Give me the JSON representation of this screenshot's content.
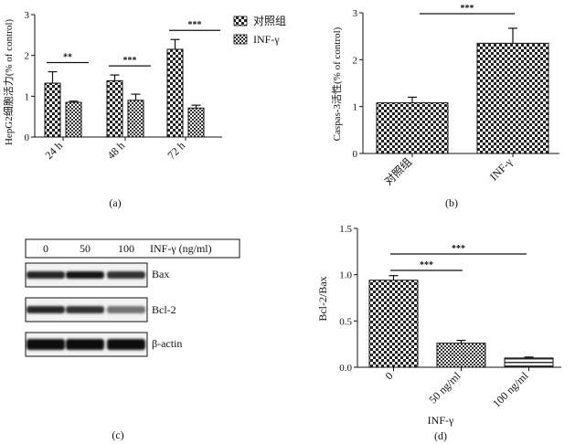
{
  "chart_data": [
    {
      "id": "a",
      "type": "bar",
      "panel_label": "(a)",
      "ylabel": "HepG2细胞活力(% of control)",
      "ylim": [
        0,
        3
      ],
      "yticks": [
        "0",
        "1",
        "2",
        "3"
      ],
      "categories": [
        "24 h",
        "48 h",
        "72 h"
      ],
      "series": [
        {
          "name": "对照组",
          "values": [
            1.32,
            1.38,
            2.15
          ],
          "errors": [
            0.28,
            0.14,
            0.24
          ],
          "pattern": "check-large"
        },
        {
          "name": "INF-γ",
          "values": [
            0.85,
            0.9,
            0.71
          ],
          "errors": [
            0.03,
            0.15,
            0.07
          ],
          "pattern": "check-small"
        }
      ],
      "legend_position": "top-right",
      "significance": [
        {
          "category": "24 h",
          "label": "**"
        },
        {
          "category": "48 h",
          "label": "***"
        },
        {
          "category": "72 h",
          "label": "***"
        }
      ]
    },
    {
      "id": "b",
      "type": "bar",
      "panel_label": "(b)",
      "ylabel": "Caspas-3活性(% of control)",
      "ylim": [
        0,
        3
      ],
      "yticks": [
        "0",
        "1",
        "2",
        "3"
      ],
      "categories": [
        "对照组",
        "INF-γ"
      ],
      "values": [
        1.08,
        2.35
      ],
      "errors": [
        0.12,
        0.32
      ],
      "pattern": "check-large",
      "significance": [
        {
          "from": 0,
          "to": 1,
          "label": "***"
        }
      ]
    },
    {
      "id": "c",
      "type": "western-blot",
      "panel_label": "(c)",
      "header_lanes": [
        "0",
        "50",
        "100"
      ],
      "header_unit": "INF-γ (ng/ml)",
      "rows": [
        {
          "name": "Bax",
          "intensity": [
            0.85,
            0.9,
            0.8
          ]
        },
        {
          "name": "Bcl-2",
          "intensity": [
            0.85,
            0.8,
            0.55
          ]
        },
        {
          "name": "β-actin",
          "intensity": [
            0.95,
            0.95,
            0.95
          ]
        }
      ]
    },
    {
      "id": "d",
      "type": "bar",
      "panel_label": "(d)",
      "ylabel": "Bcl-2/Bax",
      "xlabel": "INF-γ",
      "ylim": [
        0,
        1.5
      ],
      "yticks": [
        "0.0",
        "0.5",
        "1.0",
        "1.5"
      ],
      "categories": [
        "0",
        "50 ng/ml",
        "100 ng/ml"
      ],
      "values": [
        0.94,
        0.26,
        0.1
      ],
      "errors": [
        0.05,
        0.03,
        0.01
      ],
      "patterns": [
        "check-large",
        "check-small",
        "stripe"
      ],
      "significance": [
        {
          "from": 0,
          "to": 1,
          "label": "***"
        },
        {
          "from": 0,
          "to": 2,
          "label": "***"
        }
      ]
    }
  ]
}
